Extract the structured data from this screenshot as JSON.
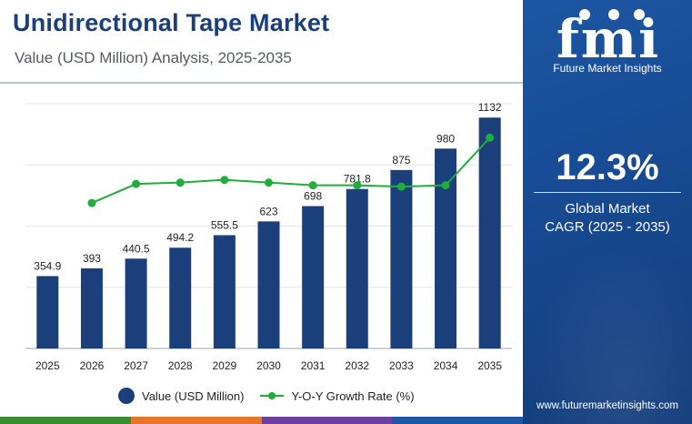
{
  "header": {
    "title": "Unidirectional Tape Market",
    "subtitle": "Value (USD Million) Analysis, 2025-2035"
  },
  "brand": {
    "logo_text": "fmi",
    "tagline": "Future Market Insights",
    "website": "www.futuremarketinsights.com"
  },
  "highlight": {
    "cagr_value": "12.3%",
    "cagr_label_line1": "Global Market",
    "cagr_label_line2": "CAGR (2025 - 2035)"
  },
  "colors": {
    "bar": "#1b3f7a",
    "line": "#1fae3a",
    "title": "#1b3f7a",
    "panel": "#174a92",
    "strip": [
      "#3a8d2e",
      "#e8742a",
      "#6a3f9e",
      "#1c56a3"
    ]
  },
  "legend": {
    "bar_label": "Value (USD Million)",
    "line_label": "Y-O-Y Growth Rate (%)"
  },
  "chart_data": {
    "type": "bar",
    "categories": [
      "2025",
      "2026",
      "2027",
      "2028",
      "2029",
      "2030",
      "2031",
      "2032",
      "2033",
      "2034",
      "2035"
    ],
    "series": [
      {
        "name": "Value (USD Million)",
        "type": "bar",
        "values": [
          354.9,
          393,
          440.5,
          494.2,
          555.5,
          623,
          698,
          781.8,
          875,
          980,
          1132
        ],
        "labels": [
          "354.9",
          "393",
          "440.5",
          "494.2",
          "555.5",
          "623",
          "698",
          "781.8",
          "875",
          "980",
          "1132"
        ]
      },
      {
        "name": "Y-O-Y Growth Rate (%)",
        "type": "line",
        "values": [
          null,
          10.7,
          12.1,
          12.2,
          12.4,
          12.2,
          12.0,
          12.0,
          11.9,
          12.0,
          15.5
        ]
      }
    ],
    "ylim": [
      0,
      1200
    ],
    "y2lim": [
      0,
      18
    ],
    "grid": true,
    "legend_position": "bottom"
  }
}
